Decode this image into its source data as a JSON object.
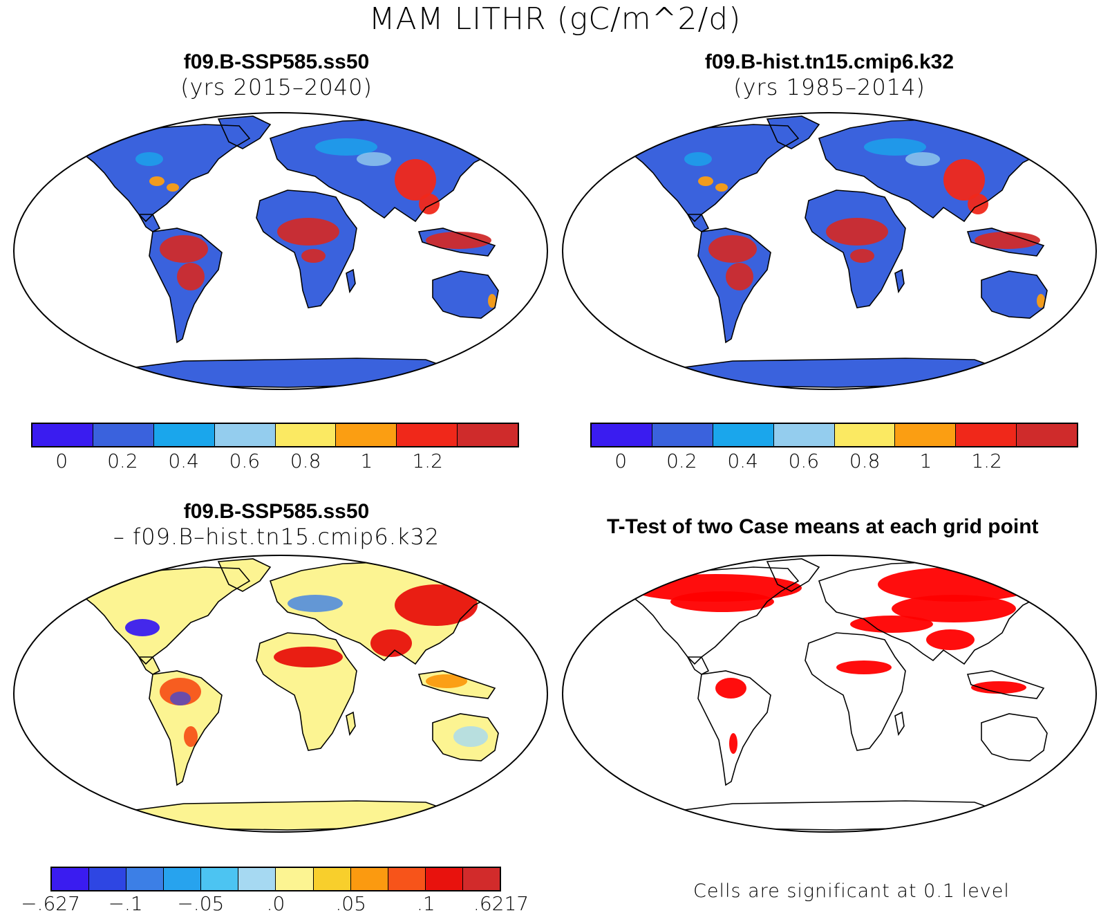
{
  "main_title": "MAM LITHR (gC/m^2/d)",
  "panels": {
    "top_left": {
      "title": "f09.B-SSP585.ss50",
      "subtitle": "(yrs 2015–2040)"
    },
    "top_right": {
      "title": "f09.B-hist.tn15.cmip6.k32",
      "subtitle": "(yrs 1985–2014)"
    },
    "bottom_left": {
      "title": "f09.B-SSP585.ss50",
      "subtitle": "– f09.B–hist.tn15.cmip6.k32"
    },
    "bottom_right": {
      "title": "T-Test of two Case means at each grid point",
      "note": "Cells are significant at 0.1 level"
    }
  },
  "colorbar_main": {
    "colors": [
      "#3a1cf0",
      "#3a62dd",
      "#1aa6ec",
      "#94cdee",
      "#fbe962",
      "#fb9e12",
      "#f0281a",
      "#cf2b2b"
    ],
    "ticks": [
      "0",
      "0.2",
      "0.4",
      "0.6",
      "0.8",
      "1",
      "1.2"
    ]
  },
  "colorbar_diff": {
    "colors": [
      "#3a1cf0",
      "#2e46e3",
      "#3c7fe6",
      "#27a3ee",
      "#4cc4f2",
      "#a6d9f2",
      "#fcf492",
      "#f8cf2c",
      "#fb9a10",
      "#f7541a",
      "#e8120d",
      "#d22b2b"
    ],
    "ticks": [
      "−.627",
      "−.1",
      "−.05",
      ".0",
      ".05",
      ".1",
      ".6217"
    ]
  },
  "colors": {
    "ocean": "#ffffff",
    "land_low": "#3a62dd",
    "land_high": "#cf2b2b",
    "diff_base": "#fcf492",
    "significant": "#ff0000",
    "outline": "#000000"
  }
}
